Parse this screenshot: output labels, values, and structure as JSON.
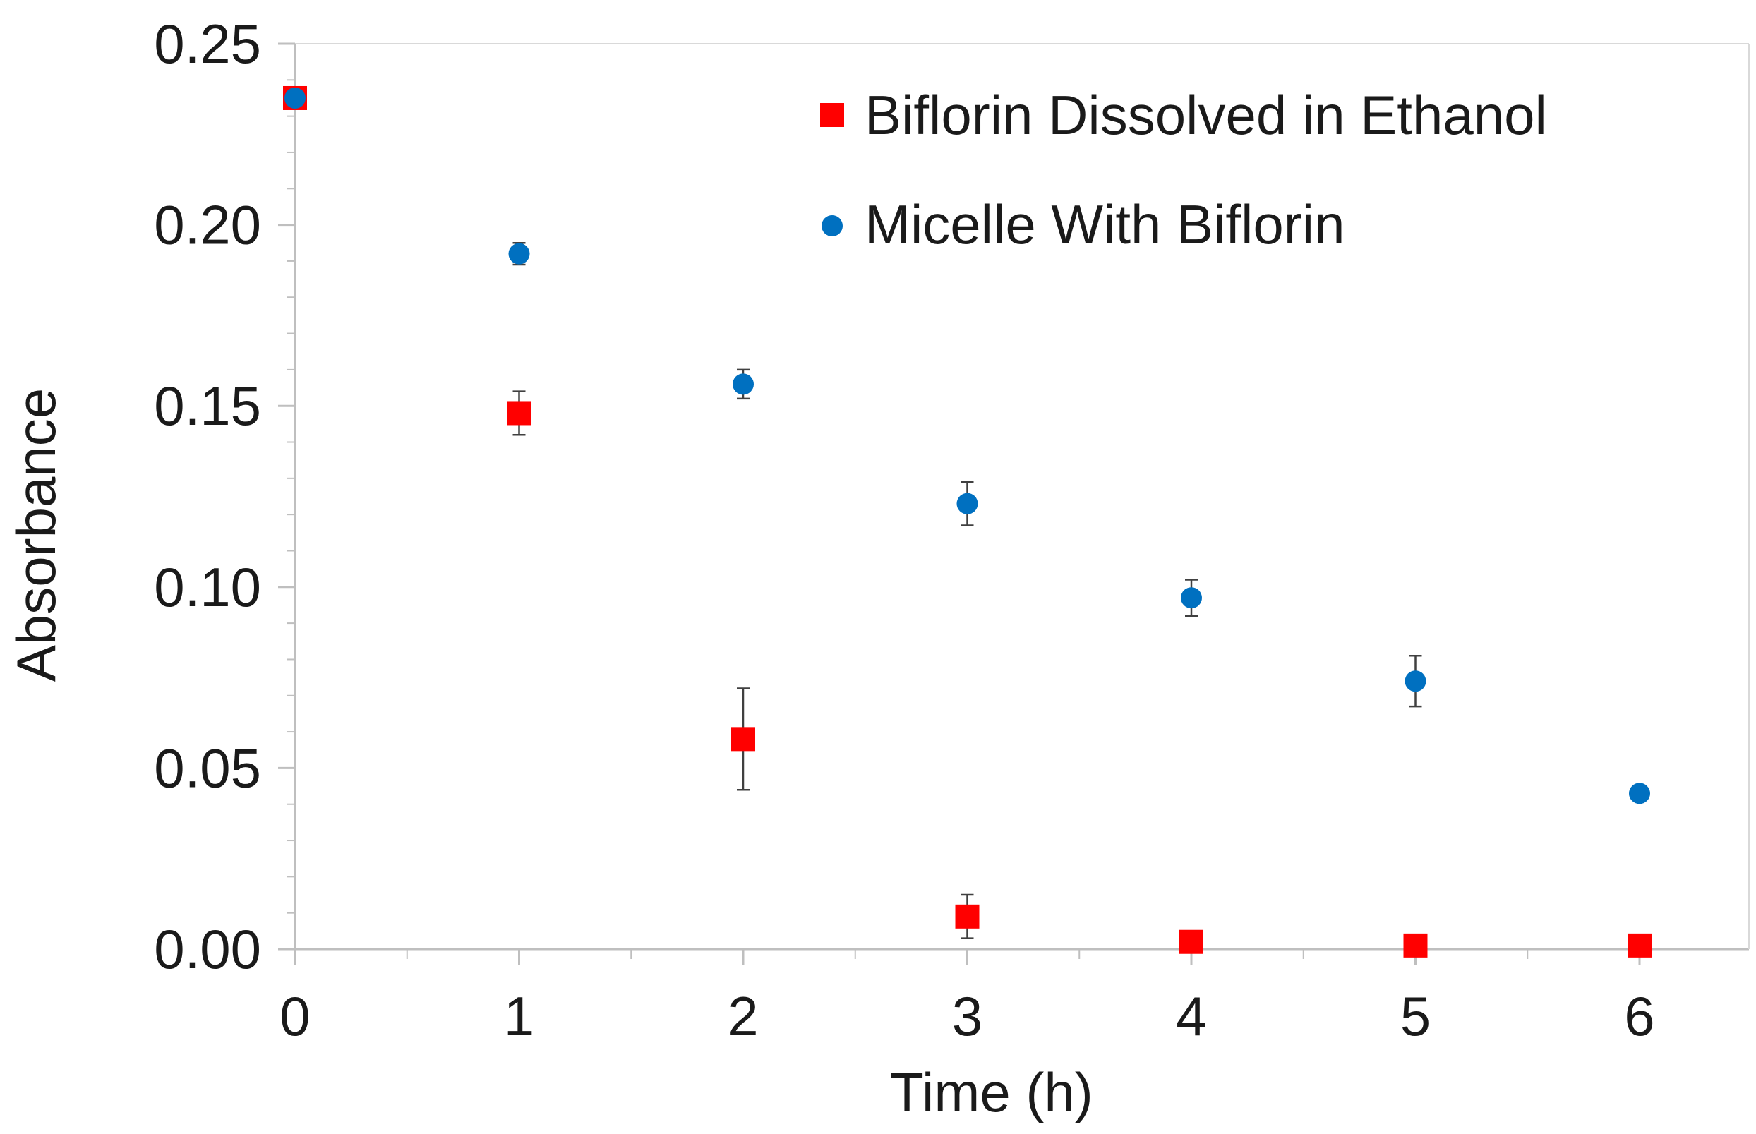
{
  "chart_data": {
    "type": "scatter",
    "title": "",
    "xlabel": "Time (h)",
    "ylabel": "Absorbance",
    "xlim": [
      0,
      6.5
    ],
    "ylim": [
      0,
      0.25
    ],
    "x_ticks": [
      0,
      1,
      2,
      3,
      4,
      5,
      6
    ],
    "x_tick_labels": [
      "0",
      "1",
      "2",
      "3",
      "4",
      "5",
      "6"
    ],
    "y_ticks": [
      0,
      0.05,
      0.1,
      0.15,
      0.2,
      0.25
    ],
    "y_tick_labels": [
      "0.00",
      "0.05",
      "0.10",
      "0.15",
      "0.20",
      "0.25"
    ],
    "grid": false,
    "legend_position": "top-right",
    "series": [
      {
        "name": "Biflorin Dissolved in Ethanol",
        "marker": "square",
        "color": "#ff0000",
        "x": [
          0,
          1,
          2,
          3,
          4,
          5,
          6
        ],
        "y": [
          0.235,
          0.148,
          0.058,
          0.009,
          0.002,
          0.001,
          0.001
        ],
        "error": [
          0.002,
          0.006,
          0.014,
          0.006,
          0.001,
          0.001,
          0.001
        ]
      },
      {
        "name": "Micelle With Biflorin",
        "marker": "circle",
        "color": "#0070c0",
        "x": [
          0,
          1,
          2,
          3,
          4,
          5,
          6
        ],
        "y": [
          0.235,
          0.192,
          0.156,
          0.123,
          0.097,
          0.074,
          0.043
        ],
        "error": [
          0.002,
          0.003,
          0.004,
          0.006,
          0.005,
          0.007,
          0.002
        ]
      }
    ]
  }
}
